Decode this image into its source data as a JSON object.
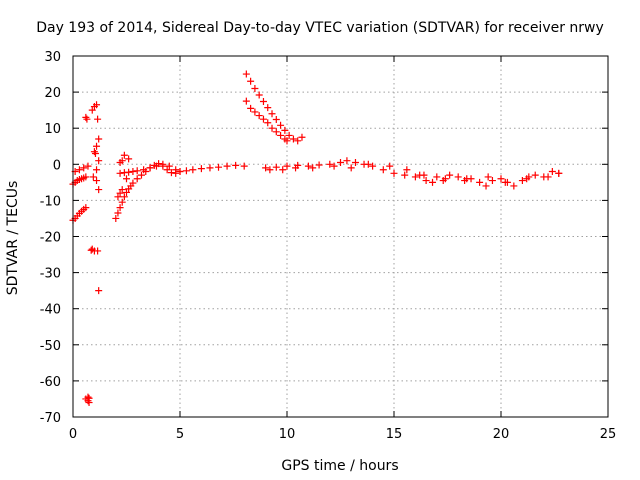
{
  "chart_data": {
    "type": "scatter",
    "title": "Day 193 of 2014, Sidereal Day-to-day VTEC variation (SDTVAR) for receiver nrwy",
    "xlabel": "GPS time / hours",
    "ylabel": "SDTVAR / TECUs",
    "xlim": [
      0,
      25
    ],
    "ylim": [
      -70,
      30
    ],
    "xticks": [
      "0",
      "5",
      "10",
      "15",
      "20",
      "25"
    ],
    "yticks": [
      "30",
      "20",
      "10",
      "0",
      "-10",
      "-20",
      "-30",
      "-40",
      "-50",
      "-60",
      "-70"
    ],
    "grid": true,
    "marker": "+",
    "color": "#ff0000",
    "series": [
      {
        "name": "SDTVAR",
        "x": [
          0.0,
          0.1,
          0.2,
          0.3,
          0.4,
          0.5,
          0.6,
          0.0,
          0.1,
          0.2,
          0.3,
          0.4,
          0.5,
          0.6,
          0.1,
          0.3,
          0.5,
          0.7,
          0.6,
          0.7,
          0.7,
          0.75,
          0.75,
          0.6,
          0.65,
          0.9,
          1.0,
          1.1,
          1.15,
          1.2,
          1.1,
          1.0,
          1.05,
          1.2,
          1.1,
          0.95,
          1.1,
          1.2,
          1.0,
          0.9,
          0.85,
          1.15,
          1.2,
          2.0,
          2.1,
          2.2,
          2.3,
          2.4,
          2.5,
          2.6,
          2.7,
          2.8,
          3.0,
          3.2,
          3.4,
          3.6,
          3.8,
          4.0,
          4.2,
          4.4,
          4.6,
          4.8,
          5.0,
          2.2,
          2.4,
          2.6,
          2.8,
          3.0,
          3.3,
          3.6,
          3.9,
          4.2,
          4.5,
          4.8,
          5.0,
          5.3,
          5.6,
          6.0,
          6.4,
          6.8,
          7.2,
          7.6,
          8.0,
          2.1,
          2.2,
          2.3,
          2.5,
          2.4,
          2.6,
          2.2,
          2.3,
          8.1,
          8.3,
          8.5,
          8.7,
          8.9,
          9.1,
          9.3,
          9.5,
          9.7,
          9.9,
          10.1,
          10.3,
          10.5,
          10.7,
          8.1,
          8.3,
          8.5,
          8.7,
          8.9,
          9.1,
          9.3,
          9.5,
          9.7,
          9.9,
          10.0,
          9.0,
          9.5,
          10.0,
          10.5,
          11.0,
          11.5,
          12.0,
          12.5,
          12.8,
          13.2,
          13.6,
          14.0,
          14.5,
          15.0,
          15.5,
          16.0,
          16.2,
          16.5,
          16.8,
          17.0,
          17.3,
          17.6,
          18.0,
          18.3,
          18.6,
          19.0,
          19.3,
          19.6,
          20.0,
          20.3,
          20.6,
          21.0,
          21.3,
          21.6,
          22.0,
          22.4,
          22.7,
          9.2,
          9.8,
          10.4,
          11.2,
          12.2,
          13.0,
          13.8,
          14.8,
          15.6,
          16.4,
          17.4,
          18.4,
          19.4,
          20.2,
          21.2,
          22.2,
          22.7
        ],
        "y": [
          -15.5,
          -15.0,
          -14.3,
          -13.6,
          -13.0,
          -12.5,
          -12.0,
          -5.5,
          -5.0,
          -4.5,
          -4.2,
          -4.0,
          -3.8,
          -3.5,
          -2.0,
          -1.5,
          -1.0,
          -0.5,
          -65.0,
          -65.5,
          -64.5,
          -66.0,
          -64.8,
          13.0,
          12.5,
          15.0,
          16.0,
          16.5,
          12.5,
          7.0,
          5.0,
          3.5,
          3.0,
          1.0,
          -1.5,
          -3.5,
          -4.5,
          -7.0,
          -24.0,
          -23.5,
          -23.8,
          -24.0,
          -35.0,
          -15.0,
          -13.5,
          -12.0,
          -10.5,
          -9.0,
          -7.8,
          -6.8,
          -6.0,
          -5.2,
          -4.0,
          -3.0,
          -2.0,
          -1.0,
          -0.3,
          0.2,
          -0.5,
          -1.5,
          -2.3,
          -2.5,
          -2.0,
          -2.5,
          -2.3,
          -2.2,
          -2.0,
          -1.8,
          -1.5,
          -1.0,
          -0.5,
          0.0,
          -0.5,
          -1.5,
          -2.0,
          -1.8,
          -1.5,
          -1.2,
          -1.0,
          -0.8,
          -0.5,
          -0.3,
          -0.5,
          -9.0,
          -8.0,
          -7.0,
          -4.0,
          2.5,
          1.5,
          0.5,
          1.0,
          25.0,
          23.0,
          21.0,
          19.2,
          17.4,
          15.7,
          14.0,
          12.4,
          10.8,
          9.4,
          8.0,
          7.0,
          6.5,
          7.5,
          17.5,
          15.5,
          14.5,
          13.5,
          12.5,
          11.5,
          10.0,
          9.0,
          8.0,
          7.0,
          6.5,
          -1.0,
          -0.8,
          -0.5,
          -0.3,
          -0.5,
          -0.2,
          0.0,
          0.5,
          1.0,
          0.5,
          0.0,
          -0.5,
          -1.5,
          -2.5,
          -3.0,
          -3.5,
          -3.0,
          -4.5,
          -5.0,
          -3.5,
          -4.5,
          -3.0,
          -3.5,
          -4.5,
          -4.0,
          -5.0,
          -6.0,
          -4.5,
          -4.0,
          -5.0,
          -6.0,
          -4.5,
          -3.5,
          -3.0,
          -3.5,
          -2.0,
          -2.5,
          -1.5,
          -1.5,
          -1.0,
          -1.0,
          -0.5,
          -1.0,
          0.0,
          -0.5,
          -1.5,
          -3.0,
          -4.0,
          -4.0,
          -3.5,
          -5.0,
          -4.0,
          -3.5,
          -2.5
        ]
      }
    ]
  }
}
